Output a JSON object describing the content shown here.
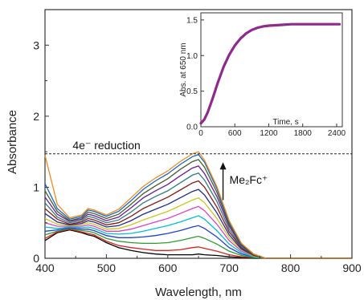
{
  "chart_data": [
    {
      "type": "line",
      "title": "",
      "xlabel": "Wavelength, nm",
      "ylabel": "Absorbance",
      "xlim": [
        400,
        900
      ],
      "ylim": [
        0,
        3.5
      ],
      "xticks": [
        400,
        500,
        600,
        700,
        800,
        900
      ],
      "yticks": [
        0,
        1,
        2,
        3
      ],
      "grid": false,
      "annotations": [
        {
          "text": "4e⁻ reduction",
          "type": "horizontal-dashed-line",
          "y": 1.47
        },
        {
          "text": "Me₂Fc⁺",
          "type": "arrow-up",
          "x": 690
        }
      ],
      "x": [
        400,
        420,
        440,
        460,
        470,
        480,
        500,
        520,
        540,
        560,
        580,
        600,
        620,
        640,
        650,
        660,
        680,
        700,
        720,
        740,
        760,
        800,
        850,
        900
      ],
      "series": [
        {
          "color": "#000000",
          "values": [
            0.25,
            0.36,
            0.4,
            0.36,
            0.33,
            0.31,
            0.22,
            0.15,
            0.11,
            0.08,
            0.06,
            0.05,
            0.05,
            0.05,
            0.06,
            0.05,
            0.04,
            0.02,
            0.01,
            0.0,
            0.0,
            0.0,
            0.0,
            0.0
          ]
        },
        {
          "color": "#e0201c",
          "values": [
            0.28,
            0.37,
            0.41,
            0.37,
            0.35,
            0.33,
            0.24,
            0.18,
            0.15,
            0.13,
            0.11,
            0.11,
            0.12,
            0.15,
            0.16,
            0.14,
            0.1,
            0.05,
            0.02,
            0.01,
            0.0,
            0.0,
            0.0,
            0.0
          ]
        },
        {
          "color": "#2e9b2e",
          "values": [
            0.33,
            0.38,
            0.42,
            0.39,
            0.38,
            0.36,
            0.28,
            0.24,
            0.22,
            0.21,
            0.21,
            0.22,
            0.25,
            0.29,
            0.31,
            0.28,
            0.2,
            0.1,
            0.04,
            0.01,
            0.0,
            0.0,
            0.0,
            0.0
          ]
        },
        {
          "color": "#1f3fd6",
          "values": [
            0.38,
            0.4,
            0.43,
            0.41,
            0.41,
            0.39,
            0.32,
            0.29,
            0.29,
            0.3,
            0.32,
            0.35,
            0.39,
            0.44,
            0.46,
            0.42,
            0.3,
            0.15,
            0.06,
            0.02,
            0.0,
            0.0,
            0.0,
            0.0
          ]
        },
        {
          "color": "#00c0d8",
          "values": [
            0.44,
            0.42,
            0.44,
            0.43,
            0.44,
            0.42,
            0.35,
            0.34,
            0.35,
            0.38,
            0.42,
            0.46,
            0.51,
            0.57,
            0.6,
            0.55,
            0.39,
            0.2,
            0.08,
            0.02,
            0.0,
            0.0,
            0.0,
            0.0
          ]
        },
        {
          "color": "#e040c8",
          "values": [
            0.5,
            0.45,
            0.45,
            0.45,
            0.47,
            0.45,
            0.38,
            0.38,
            0.41,
            0.46,
            0.51,
            0.56,
            0.63,
            0.7,
            0.73,
            0.67,
            0.48,
            0.25,
            0.1,
            0.03,
            0.0,
            0.0,
            0.0,
            0.0
          ]
        },
        {
          "color": "#c8c81e",
          "values": [
            0.56,
            0.48,
            0.46,
            0.47,
            0.5,
            0.48,
            0.41,
            0.42,
            0.47,
            0.54,
            0.6,
            0.66,
            0.74,
            0.82,
            0.85,
            0.78,
            0.56,
            0.29,
            0.12,
            0.03,
            0.0,
            0.0,
            0.0,
            0.0
          ]
        },
        {
          "color": "#1e2a8c",
          "values": [
            0.63,
            0.51,
            0.47,
            0.49,
            0.53,
            0.51,
            0.44,
            0.46,
            0.53,
            0.62,
            0.69,
            0.76,
            0.85,
            0.94,
            0.97,
            0.89,
            0.64,
            0.33,
            0.13,
            0.04,
            0.0,
            0.0,
            0.0,
            0.0
          ]
        },
        {
          "color": "#8b1a1a",
          "values": [
            0.7,
            0.55,
            0.48,
            0.51,
            0.56,
            0.54,
            0.47,
            0.5,
            0.59,
            0.7,
            0.78,
            0.86,
            0.96,
            1.06,
            1.09,
            1.0,
            0.72,
            0.37,
            0.15,
            0.04,
            0.0,
            0.0,
            0.0,
            0.0
          ]
        },
        {
          "color": "#2e7d7d",
          "values": [
            0.78,
            0.58,
            0.5,
            0.53,
            0.59,
            0.57,
            0.5,
            0.54,
            0.65,
            0.78,
            0.87,
            0.95,
            1.06,
            1.17,
            1.2,
            1.1,
            0.8,
            0.41,
            0.16,
            0.05,
            0.0,
            0.0,
            0.0,
            0.0
          ]
        },
        {
          "color": "#6a1b9a",
          "values": [
            0.86,
            0.62,
            0.52,
            0.55,
            0.62,
            0.6,
            0.53,
            0.58,
            0.71,
            0.85,
            0.95,
            1.04,
            1.16,
            1.27,
            1.3,
            1.19,
            0.87,
            0.45,
            0.18,
            0.05,
            0.0,
            0.0,
            0.0,
            0.0
          ]
        },
        {
          "color": "#4a5a2a",
          "values": [
            0.95,
            0.66,
            0.53,
            0.57,
            0.65,
            0.63,
            0.56,
            0.62,
            0.76,
            0.91,
            1.02,
            1.12,
            1.25,
            1.36,
            1.39,
            1.28,
            0.93,
            0.48,
            0.19,
            0.05,
            0.0,
            0.0,
            0.0,
            0.0
          ]
        },
        {
          "color": "#1565c0",
          "values": [
            1.05,
            0.7,
            0.55,
            0.59,
            0.68,
            0.66,
            0.59,
            0.66,
            0.81,
            0.97,
            1.09,
            1.19,
            1.32,
            1.43,
            1.46,
            1.35,
            0.98,
            0.51,
            0.2,
            0.06,
            0.0,
            0.0,
            0.0,
            0.0
          ]
        },
        {
          "color": "#ef8c1e",
          "values": [
            1.45,
            0.76,
            0.57,
            0.61,
            0.7,
            0.68,
            0.61,
            0.69,
            0.85,
            1.01,
            1.13,
            1.23,
            1.36,
            1.47,
            1.5,
            1.38,
            1.01,
            0.53,
            0.21,
            0.06,
            0.0,
            0.0,
            0.0,
            0.0
          ]
        }
      ]
    },
    {
      "type": "line",
      "title": "",
      "xlabel": "Time, s",
      "ylabel": "Abs. at 650 nm",
      "xlim": [
        0,
        2500
      ],
      "ylim": [
        0,
        1.6
      ],
      "xticks": [
        0,
        600,
        1200,
        1800,
        2400
      ],
      "yticks": [
        0.0,
        0.5,
        1.0,
        1.5
      ],
      "grid": false,
      "series": [
        {
          "color": "#8e2a8e",
          "x": [
            0,
            60,
            120,
            200,
            300,
            400,
            500,
            600,
            700,
            800,
            900,
            1000,
            1100,
            1200,
            1400,
            1600,
            1800,
            2000,
            2200,
            2450
          ],
          "values": [
            0.05,
            0.1,
            0.2,
            0.38,
            0.62,
            0.84,
            1.01,
            1.14,
            1.24,
            1.31,
            1.36,
            1.39,
            1.41,
            1.42,
            1.43,
            1.44,
            1.44,
            1.44,
            1.44,
            1.44
          ]
        }
      ]
    }
  ]
}
